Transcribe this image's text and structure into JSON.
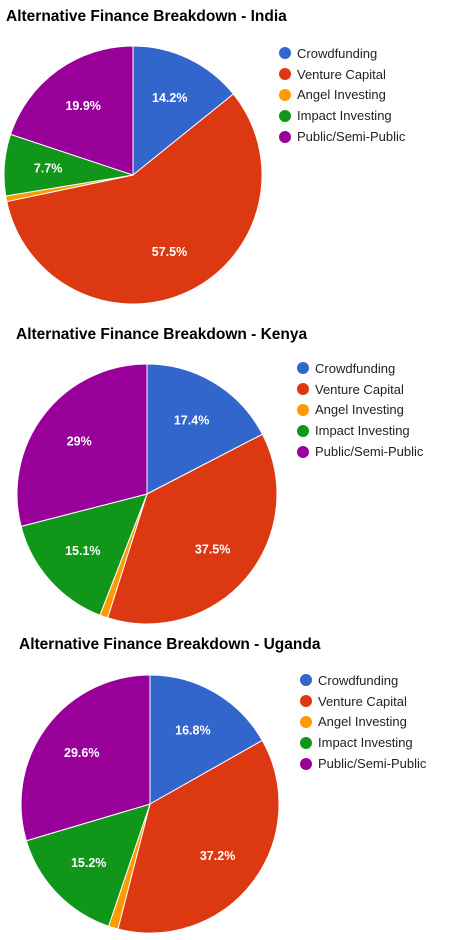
{
  "colors": {
    "crowdfunding": "#3366cc",
    "venture": "#dc3912",
    "angel": "#ff9900",
    "impact": "#109618",
    "public": "#990099"
  },
  "chart_data": [
    {
      "type": "pie",
      "title": "Alternative Finance Breakdown - India",
      "legend_position": "right",
      "categories": [
        "Crowdfunding",
        "Venture Capital",
        "Angel Investing",
        "Impact Investing",
        "Public/Semi-Public"
      ],
      "values": [
        14.2,
        57.5,
        0.7,
        7.7,
        19.9
      ],
      "labels": [
        "14.2%",
        "57.5%",
        "",
        "7.7%",
        "19.9%"
      ]
    },
    {
      "type": "pie",
      "title": "Alternative Finance Breakdown - Kenya",
      "legend_position": "right",
      "categories": [
        "Crowdfunding",
        "Venture Capital",
        "Angel Investing",
        "Impact Investing",
        "Public/Semi-Public"
      ],
      "values": [
        17.4,
        37.5,
        1.0,
        15.1,
        29
      ],
      "labels": [
        "17.4%",
        "37.5%",
        "",
        "15.1%",
        "29%"
      ]
    },
    {
      "type": "pie",
      "title": "Alternative Finance Breakdown - Uganda",
      "legend_position": "right",
      "categories": [
        "Crowdfunding",
        "Venture Capital",
        "Angel Investing",
        "Impact Investing",
        "Public/Semi-Public"
      ],
      "values": [
        16.8,
        37.2,
        1.2,
        15.2,
        29.6
      ],
      "labels": [
        "16.8%",
        "37.2%",
        "",
        "15.2%",
        "29.6%"
      ]
    }
  ]
}
